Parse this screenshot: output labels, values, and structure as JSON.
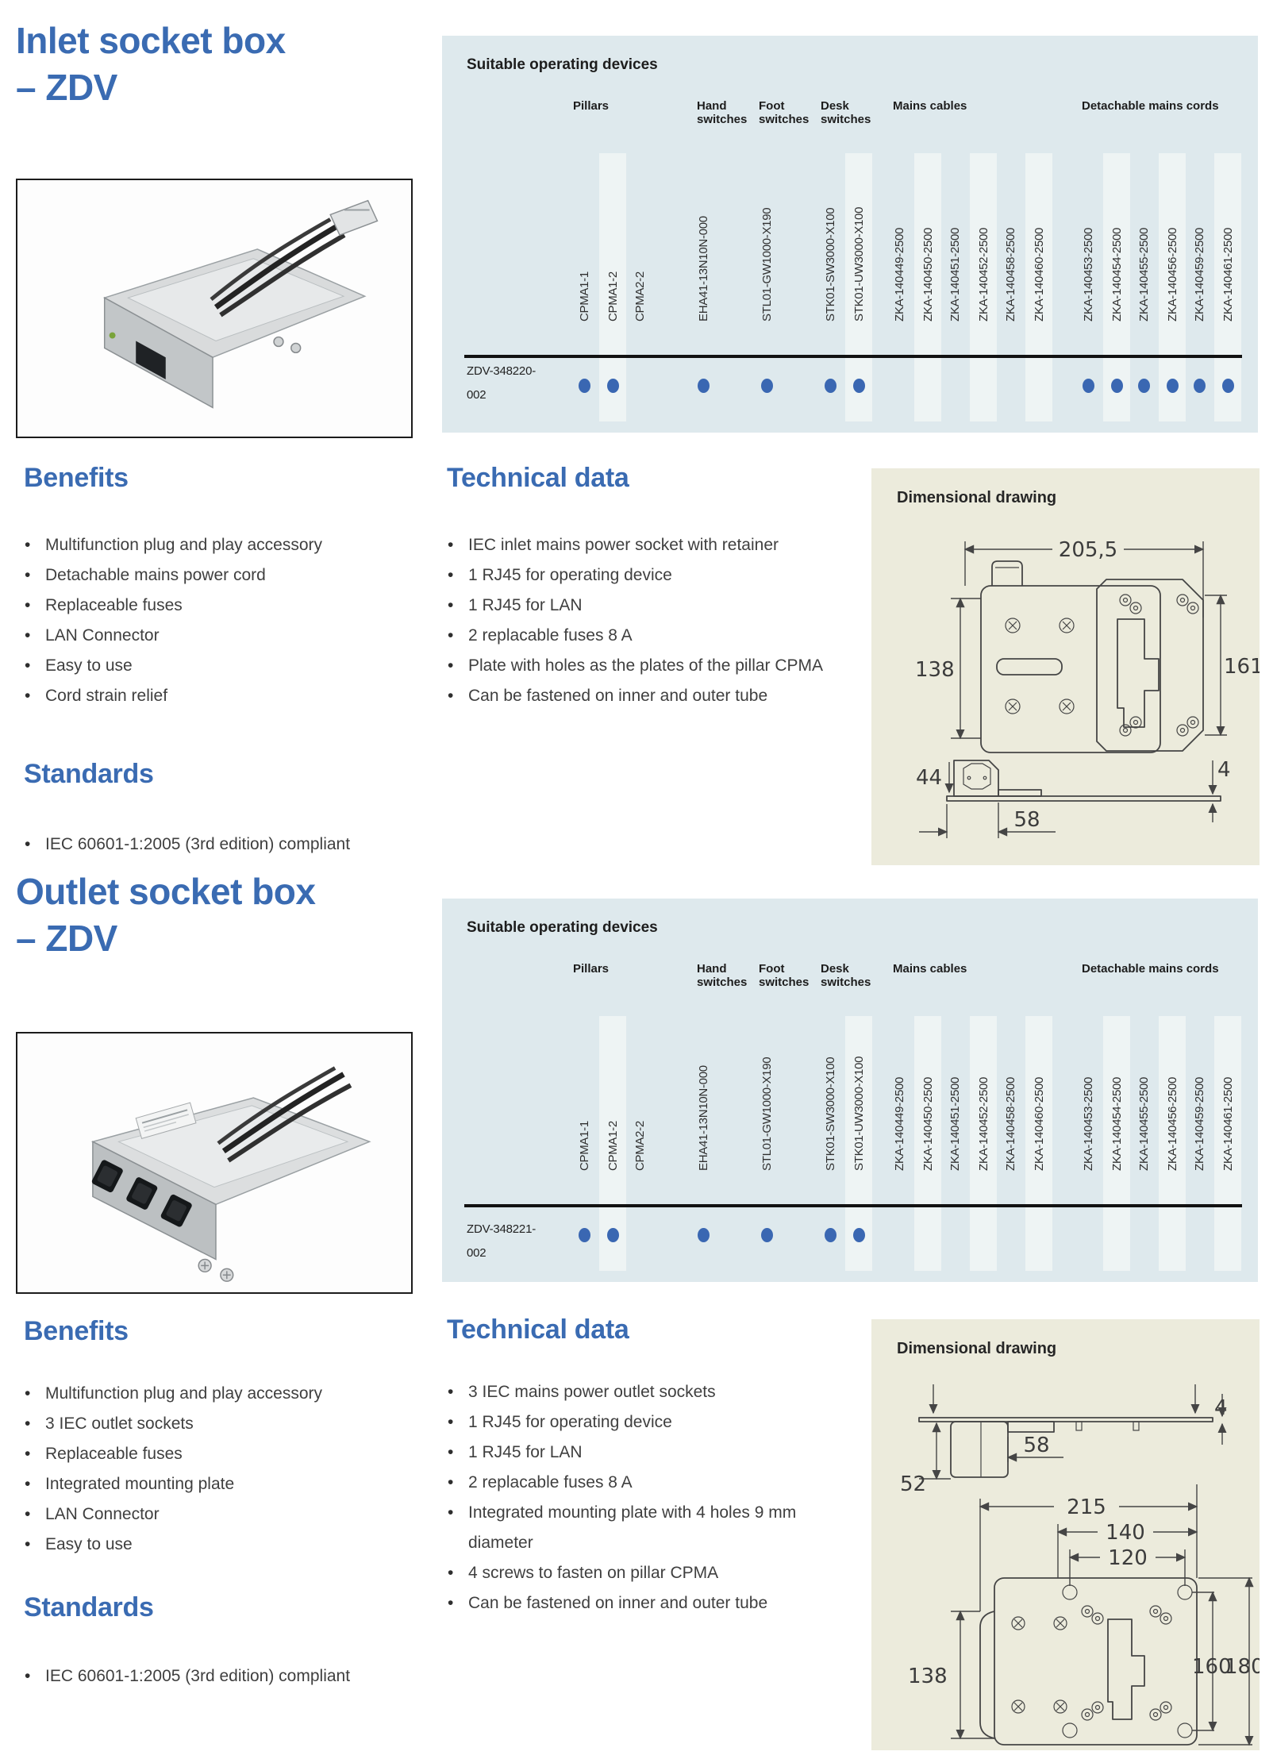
{
  "colors": {
    "accent_blue": "#3a6bb2",
    "dot_blue": "#3a67b2",
    "table_bg": "#dee9ed",
    "stripe": "#eef4f4",
    "dim_panel_bg": "#ecebdc",
    "rule": "#121212",
    "body_text": "#3f3f3f"
  },
  "device_columns": {
    "groups": [
      {
        "label": "Pillars",
        "columns": [
          "CPMA1-1",
          "CPMA1-2",
          "CPMA2-2"
        ]
      },
      {
        "label": "Hand switches",
        "columns": [
          "EHA41-13N10N-000"
        ]
      },
      {
        "label": "Foot switches",
        "columns": [
          "STL01-GW1000-X190"
        ]
      },
      {
        "label": "Desk switches",
        "columns": [
          "STK01-SW3000-X100",
          "STK01-UW3000-X100"
        ]
      },
      {
        "label": "Mains cables",
        "columns": [
          "ZKA-140449-2500",
          "ZKA-140450-2500",
          "ZKA-140451-2500",
          "ZKA-140452-2500",
          "ZKA-140458-2500",
          "ZKA-140460-2500"
        ]
      },
      {
        "label": "Detachable mains cords",
        "columns": [
          "ZKA-140453-2500",
          "ZKA-140454-2500",
          "ZKA-140455-2500",
          "ZKA-140456-2500",
          "ZKA-140459-2500",
          "ZKA-140461-2500"
        ]
      }
    ]
  },
  "sections": [
    {
      "title_line1": "Inlet socket box",
      "title_line2": "– ZDV",
      "table": {
        "title": "Suitable operating devices",
        "row_label_line1": "ZDV-348220-",
        "row_label_line2": "002",
        "compat": [
          true,
          true,
          false,
          true,
          true,
          true,
          true,
          false,
          false,
          false,
          false,
          false,
          false,
          true,
          true,
          true,
          true,
          true,
          true
        ]
      },
      "benefits": {
        "heading": "Benefits",
        "items": [
          "Multifunction plug and play accessory",
          "Detachable mains power cord",
          "Replaceable fuses",
          "LAN Connector",
          "Easy to use",
          "Cord strain relief"
        ]
      },
      "standards": {
        "heading": "Standards",
        "items": [
          "IEC 60601-1:2005 (3rd edition) compliant"
        ]
      },
      "technical": {
        "heading": "Technical data",
        "items": [
          "IEC inlet mains power socket with retainer",
          "1 RJ45 for operating device",
          "1 RJ45 for LAN",
          "2 replacable fuses 8 A",
          "Plate with holes as the plates of the pillar CPMA",
          "Can be fastened on inner and outer tube"
        ]
      },
      "dimensional": {
        "heading": "Dimensional drawing",
        "dims": {
          "plate_width": "205,5",
          "left_height": "138",
          "right_height": "161",
          "box_height": "44",
          "plate_thickness": "4",
          "box_width": "58"
        }
      }
    },
    {
      "title_line1": "Outlet socket box",
      "title_line2": "– ZDV",
      "table": {
        "title": "Suitable operating devices",
        "row_label_line1": "ZDV-348221-",
        "row_label_line2": "002",
        "compat": [
          true,
          true,
          false,
          true,
          true,
          true,
          true,
          false,
          false,
          false,
          false,
          false,
          false,
          false,
          false,
          false,
          false,
          false,
          false
        ]
      },
      "benefits": {
        "heading": "Benefits",
        "items": [
          "Multifunction plug and play accessory",
          "3 IEC outlet sockets",
          "Replaceable fuses",
          "Integrated mounting plate",
          "LAN Connector",
          "Easy to use"
        ]
      },
      "standards": {
        "heading": "Standards",
        "items": [
          "IEC 60601-1:2005 (3rd edition) compliant"
        ]
      },
      "technical": {
        "heading": "Technical data",
        "items": [
          "3 IEC mains power outlet sockets",
          "1 RJ45 for operating device",
          "1 RJ45 for LAN",
          "2 replacable fuses 8 A",
          "Integrated mounting plate with 4 holes 9 mm diameter",
          "4 screws to fasten on pillar CPMA",
          "Can be fastened on inner and outer tube"
        ]
      },
      "dimensional": {
        "heading": "Dimensional drawing",
        "dims": {
          "box_width": "58",
          "plate_thickness": "4",
          "box_height": "52",
          "plate_width": "215",
          "hole_span_outer": "140",
          "hole_span_inner": "120",
          "left_height": "138",
          "inner_height": "160",
          "outer_height": "180"
        }
      }
    }
  ]
}
